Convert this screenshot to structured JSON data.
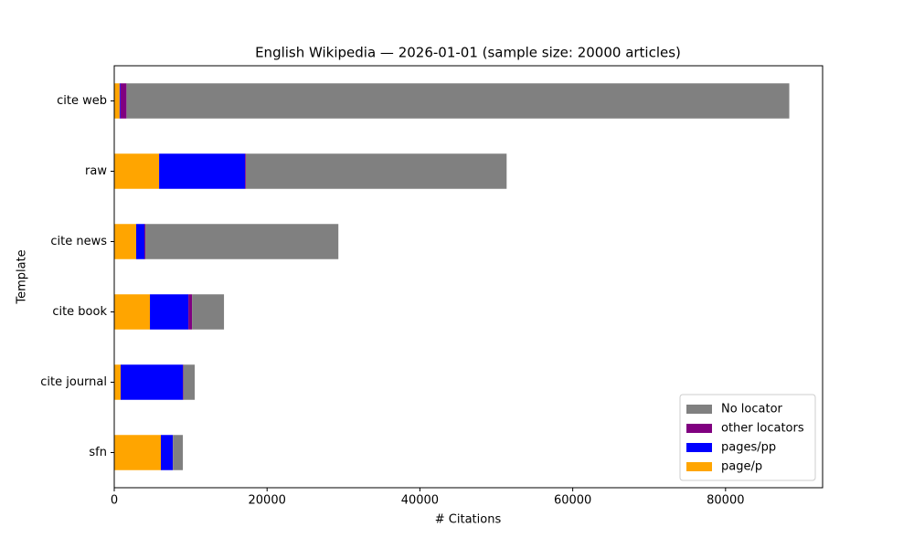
{
  "chart_data": {
    "type": "stacked-barh",
    "title": "English Wikipedia — 2026-01-01 (sample size: 20000 articles)",
    "x_label": "# Citations",
    "y_label": "Template",
    "categories": [
      "cite web",
      "raw",
      "cite news",
      "cite book",
      "cite journal",
      "sfn"
    ],
    "series": [
      {
        "name": "page/p",
        "color": "#ffa500",
        "values": [
          700,
          5870,
          2870,
          4670,
          840,
          6100
        ]
      },
      {
        "name": "pages/pp",
        "color": "#0000ff",
        "values": [
          100,
          11250,
          1080,
          5030,
          8140,
          1560
        ]
      },
      {
        "name": "other locators",
        "color": "#800080",
        "values": [
          800,
          100,
          120,
          480,
          50,
          20
        ]
      },
      {
        "name": "No locator",
        "color": "#808080",
        "values": [
          86740,
          34130,
          25260,
          4180,
          1500,
          1300
        ]
      }
    ],
    "xlim": [
      0,
      92700
    ],
    "xticks": [
      0,
      20000,
      40000,
      60000,
      80000
    ],
    "legend": "lower right"
  }
}
